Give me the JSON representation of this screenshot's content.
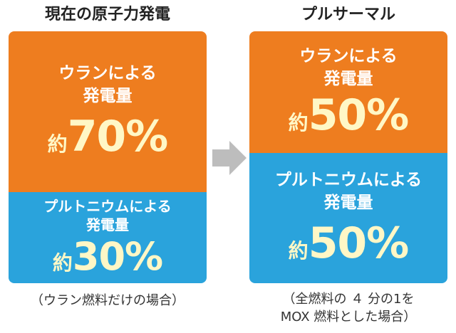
{
  "left": {
    "title": "現在の原子力発電",
    "segments": [
      {
        "label": [
          "ウランによる",
          "発電量"
        ],
        "prefix": "約",
        "value": "70%"
      },
      {
        "label": [
          "プルトニウムによる",
          "発電量"
        ],
        "prefix": "約",
        "value": "30%"
      }
    ],
    "note": [
      "（ウラン燃料だけの場合）"
    ]
  },
  "right": {
    "title": "プルサーマル",
    "segments": [
      {
        "label": [
          "ウランによる",
          "発電量"
        ],
        "prefix": "約",
        "value": "50%"
      },
      {
        "label": [
          "プルトニウムによる",
          "発電量"
        ],
        "prefix": "約",
        "value": "50%"
      }
    ],
    "note": [
      "（全燃料の ４ 分の1を",
      "MOX 燃料とした場合）"
    ]
  }
}
